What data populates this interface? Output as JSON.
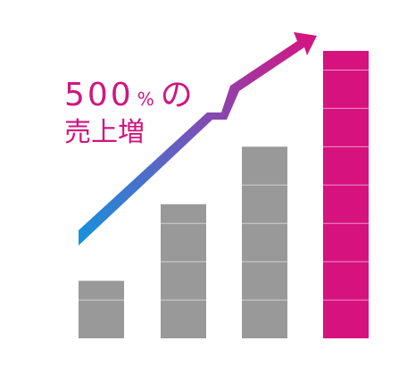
{
  "chart_data": {
    "type": "bar",
    "title": {
      "number": "500",
      "unit": "%",
      "particle": "の"
    },
    "subtitle": "売上増",
    "categories": [
      null,
      null,
      null,
      null
    ],
    "values": [
      1.5,
      3.5,
      5,
      7.5
    ],
    "colors": [
      "#999999",
      "#999999",
      "#999999",
      "#d6127f"
    ],
    "ylim": [
      0,
      7.5
    ]
  }
}
